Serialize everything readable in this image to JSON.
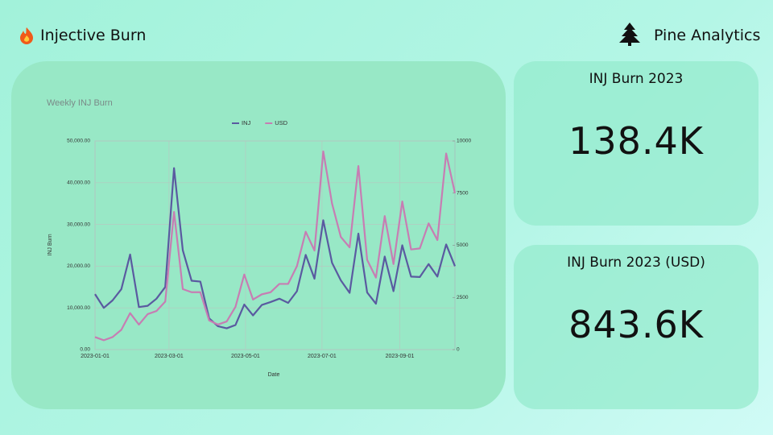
{
  "header": {
    "title": "Injective Burn",
    "brand": "Pine Analytics"
  },
  "cards": [
    {
      "label": "INJ Burn 2023",
      "value": "138.4K"
    },
    {
      "label": "INJ Burn 2023 (USD)",
      "value": "843.6K"
    }
  ],
  "chart_data": {
    "type": "line",
    "title": "Weekly INJ Burn",
    "x_label": "Date",
    "y_label": "INJ Burn",
    "x": [
      "2023-01-01",
      "2023-01-08",
      "2023-01-15",
      "2023-01-22",
      "2023-01-29",
      "2023-02-05",
      "2023-02-12",
      "2023-02-19",
      "2023-02-26",
      "2023-03-05",
      "2023-03-12",
      "2023-03-19",
      "2023-03-26",
      "2023-04-02",
      "2023-04-09",
      "2023-04-16",
      "2023-04-23",
      "2023-04-30",
      "2023-05-07",
      "2023-05-14",
      "2023-05-21",
      "2023-05-28",
      "2023-06-04",
      "2023-06-11",
      "2023-06-18",
      "2023-06-25",
      "2023-07-02",
      "2023-07-09",
      "2023-07-16",
      "2023-07-23",
      "2023-07-30",
      "2023-08-06",
      "2023-08-13",
      "2023-08-20",
      "2023-08-27",
      "2023-09-03",
      "2023-09-10",
      "2023-09-17",
      "2023-09-24",
      "2023-10-01",
      "2023-10-08",
      "2023-10-15"
    ],
    "series": [
      {
        "name": "INJ",
        "color": "#5a5aa0",
        "values": [
          13300,
          10000,
          11800,
          14500,
          22800,
          10200,
          10500,
          12200,
          15000,
          43500,
          23800,
          16500,
          16300,
          7500,
          5600,
          5100,
          5900,
          10800,
          8200,
          10700,
          11400,
          12200,
          11200,
          14000,
          22700,
          17000,
          31000,
          20800,
          16600,
          13600,
          27800,
          13700,
          11000,
          22300,
          14000,
          25000,
          17500,
          17400,
          20500,
          17500,
          25200,
          20000
        ]
      },
      {
        "name": "USD",
        "color": "#c77db3",
        "axis": "y2",
        "values": [
          600,
          450,
          600,
          950,
          1750,
          1200,
          1700,
          1850,
          2300,
          6600,
          2900,
          2750,
          2750,
          1400,
          1200,
          1350,
          2050,
          3600,
          2400,
          2650,
          2750,
          3150,
          3150,
          4000,
          5650,
          4750,
          9500,
          7000,
          5400,
          4900,
          8800,
          4300,
          3450,
          6400,
          4100,
          7100,
          4800,
          4850,
          6050,
          5250,
          9400,
          7500
        ]
      }
    ],
    "xlim": [
      "2023-01-01",
      "2023-10-15"
    ],
    "xticks": [
      "2023-01-01",
      "2023-03-01",
      "2023-05-01",
      "2023-07-01",
      "2023-09-01"
    ],
    "ylim": [
      0,
      50000
    ],
    "yticks": [
      {
        "value": 0,
        "label": "0.00"
      },
      {
        "value": 10000,
        "label": "10,000.00"
      },
      {
        "value": 20000,
        "label": "20,000.00"
      },
      {
        "value": 30000,
        "label": "30,000.00"
      },
      {
        "value": 40000,
        "label": "40,000.00"
      },
      {
        "value": 50000,
        "label": "50,000.00"
      }
    ],
    "y2lim": [
      0,
      10000
    ],
    "y2ticks": [
      0,
      2500,
      5000,
      7500,
      10000
    ],
    "grid": true,
    "legend": "top"
  }
}
